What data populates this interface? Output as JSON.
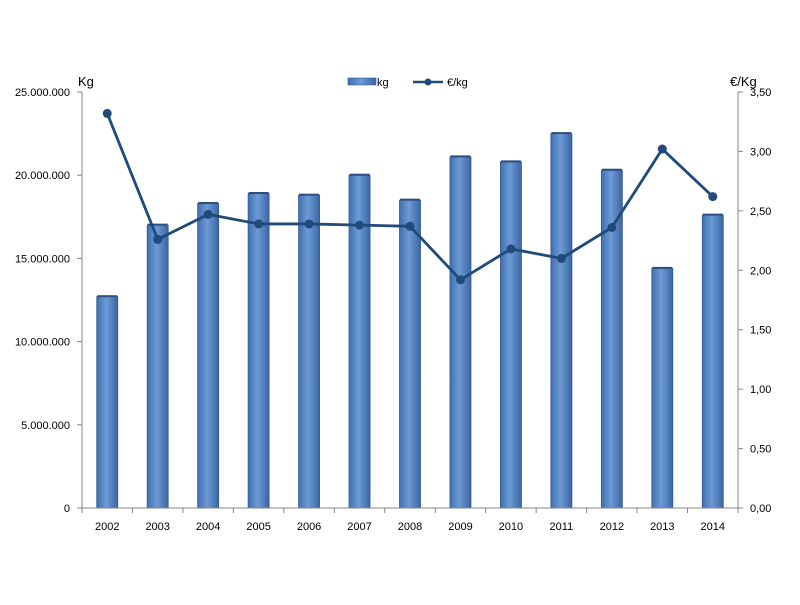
{
  "chart_data": {
    "type": "bar",
    "categories": [
      "2002",
      "2003",
      "2004",
      "2005",
      "2006",
      "2007",
      "2008",
      "2009",
      "2010",
      "2011",
      "2012",
      "2013",
      "2014"
    ],
    "series": [
      {
        "name": "kg",
        "type": "bar",
        "axis": "left",
        "color": "#5585C5",
        "values": [
          12700000,
          17000000,
          18300000,
          18900000,
          18800000,
          20000000,
          18500000,
          21100000,
          20800000,
          22500000,
          20300000,
          14400000,
          17600000
        ]
      },
      {
        "name": "€/kg",
        "type": "line",
        "axis": "right",
        "color": "#1F4A7A",
        "values": [
          3.32,
          2.26,
          2.47,
          2.39,
          2.39,
          2.38,
          2.37,
          1.92,
          2.18,
          2.1,
          2.36,
          3.02,
          2.62
        ]
      }
    ],
    "ylabel": "Kg",
    "ylabel_right": "€/Kg",
    "ylim": [
      0,
      25000000
    ],
    "ylim_right": [
      0,
      3.5
    ],
    "yticks": [
      "0",
      "5.000.000",
      "10.000.000",
      "15.000.000",
      "20.000.000",
      "25.000.000"
    ],
    "yticks_right": [
      "0,00",
      "0,50",
      "1,00",
      "1,50",
      "2,00",
      "2,50",
      "3,00",
      "3,50"
    ],
    "grid": false,
    "legend": "top-center"
  }
}
